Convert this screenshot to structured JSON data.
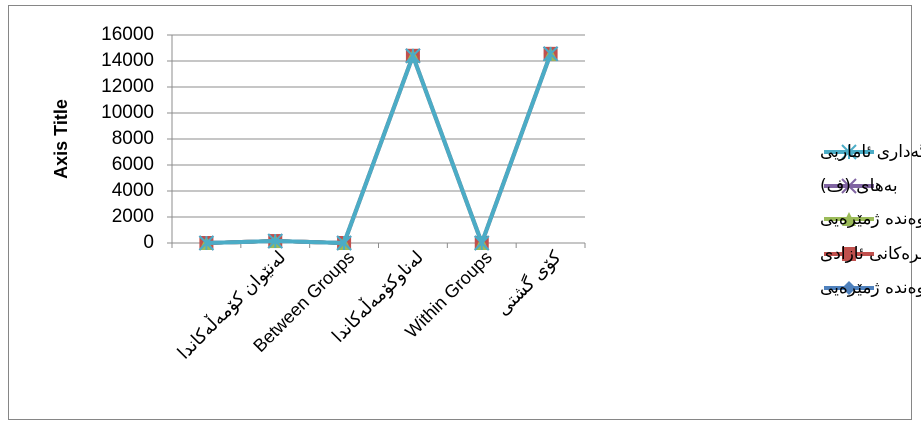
{
  "chart_data": {
    "type": "line",
    "y_label": "Axis Title",
    "categories": [
      null,
      "لەنێوان کۆمەڵەکاندا",
      "Between Groups",
      "لەناوکۆمەڵەکاندا",
      "Within Groups",
      "کۆی گشتی"
    ],
    "series": [
      {
        "name": "کۆی ناوەندە ژمێرەیی",
        "color": "#4f81bd",
        "marker": "diamond",
        "values": [
          0,
          150,
          0,
          14400,
          0,
          14550
        ]
      },
      {
        "name": "نمرەکانی ئازادی",
        "color": "#c0504d",
        "marker": "square",
        "values": [
          0,
          150,
          0,
          14400,
          0,
          14550
        ]
      },
      {
        "name": "دوجای ناوەندە ژمێرەیی",
        "color": "#9bbb59",
        "marker": "triangle",
        "values": [
          0,
          150,
          0,
          14400,
          0,
          14550
        ]
      },
      {
        "name": "بەهای (ف)",
        "color": "#8064a2",
        "marker": "x",
        "values": [
          0,
          150,
          0,
          14400,
          0,
          14550
        ]
      },
      {
        "name": "ئاستی بەڵگەداری ئاماریی",
        "color": "#4bacc6",
        "marker": "asterisk",
        "values": [
          0,
          150,
          0,
          14400,
          0,
          14550
        ]
      }
    ],
    "ylim": [
      0,
      16000
    ],
    "yticks": [
      0,
      2000,
      4000,
      6000,
      8000,
      10000,
      12000,
      14000,
      16000
    ],
    "grid": true,
    "legend": "right"
  }
}
